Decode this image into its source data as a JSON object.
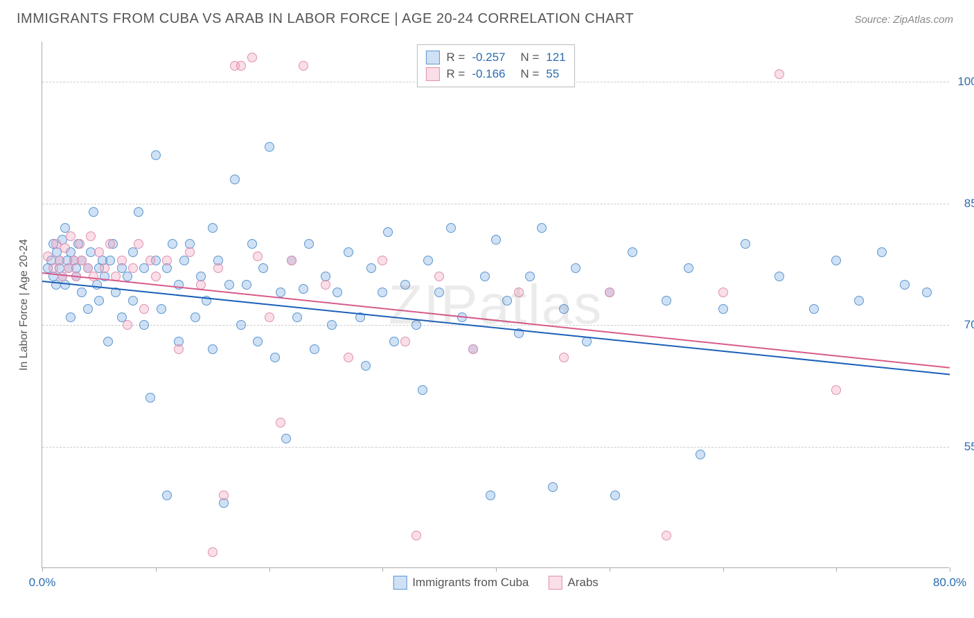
{
  "title": "IMMIGRANTS FROM CUBA VS ARAB IN LABOR FORCE | AGE 20-24 CORRELATION CHART",
  "source": "Source: ZipAtlas.com",
  "watermark": "ZIPatlas",
  "ylabel": "In Labor Force | Age 20-24",
  "chart": {
    "type": "scatter",
    "xlim": [
      0,
      80
    ],
    "ylim": [
      40,
      105
    ],
    "xticks": [
      0,
      10,
      20,
      30,
      40,
      50,
      60,
      70,
      80
    ],
    "xtick_labels_shown": {
      "0": "0.0%",
      "80": "80.0%"
    },
    "yticks": [
      55,
      70,
      85,
      100
    ],
    "ytick_labels": [
      "55.0%",
      "70.0%",
      "85.0%",
      "100.0%"
    ],
    "grid_color": "#cccccc",
    "background_color": "#ffffff",
    "point_radius": 7,
    "point_stroke_width": 1.5,
    "series": [
      {
        "name": "Immigrants from Cuba",
        "fill": "rgba(120,170,225,0.35)",
        "stroke": "#5a96d0",
        "R": "-0.257",
        "N": "121",
        "trend": {
          "x1": 0,
          "y1": 75.5,
          "x2": 80,
          "y2": 64.0,
          "color": "#1b5fb8"
        },
        "points": [
          [
            0.5,
            77
          ],
          [
            0.8,
            78
          ],
          [
            1.0,
            76
          ],
          [
            1.0,
            80
          ],
          [
            1.2,
            75
          ],
          [
            1.3,
            79
          ],
          [
            1.5,
            77
          ],
          [
            1.5,
            78
          ],
          [
            1.8,
            76
          ],
          [
            1.8,
            80.5
          ],
          [
            2.0,
            75
          ],
          [
            2.0,
            82
          ],
          [
            2.2,
            78
          ],
          [
            2.3,
            77
          ],
          [
            2.5,
            71
          ],
          [
            2.5,
            79
          ],
          [
            2.8,
            78
          ],
          [
            3.0,
            77
          ],
          [
            3.0,
            76
          ],
          [
            3.2,
            80
          ],
          [
            3.5,
            74
          ],
          [
            3.5,
            78
          ],
          [
            4.0,
            77
          ],
          [
            4.0,
            72
          ],
          [
            4.3,
            79
          ],
          [
            4.5,
            84
          ],
          [
            4.8,
            75
          ],
          [
            5.0,
            77
          ],
          [
            5.0,
            73
          ],
          [
            5.3,
            78
          ],
          [
            5.5,
            76
          ],
          [
            5.8,
            68
          ],
          [
            6.0,
            78
          ],
          [
            6.2,
            80
          ],
          [
            6.5,
            74
          ],
          [
            7.0,
            77
          ],
          [
            7.0,
            71
          ],
          [
            7.5,
            76
          ],
          [
            8.0,
            79
          ],
          [
            8.0,
            73
          ],
          [
            8.5,
            84
          ],
          [
            9.0,
            77
          ],
          [
            9.0,
            70
          ],
          [
            9.5,
            61
          ],
          [
            10.0,
            78
          ],
          [
            10.0,
            91
          ],
          [
            10.5,
            72
          ],
          [
            11.0,
            77
          ],
          [
            11.0,
            49
          ],
          [
            11.5,
            80
          ],
          [
            12.0,
            75
          ],
          [
            12.0,
            68
          ],
          [
            12.5,
            78
          ],
          [
            13.0,
            80
          ],
          [
            13.5,
            71
          ],
          [
            14.0,
            76
          ],
          [
            14.5,
            73
          ],
          [
            15.0,
            82
          ],
          [
            15.0,
            67
          ],
          [
            15.5,
            78
          ],
          [
            16.0,
            48
          ],
          [
            16.5,
            75
          ],
          [
            17.0,
            88
          ],
          [
            17.5,
            70
          ],
          [
            18.0,
            75
          ],
          [
            18.5,
            80
          ],
          [
            19.0,
            68
          ],
          [
            19.5,
            77
          ],
          [
            20.0,
            92
          ],
          [
            20.5,
            66
          ],
          [
            21.0,
            74
          ],
          [
            21.5,
            56
          ],
          [
            22.0,
            78
          ],
          [
            22.5,
            71
          ],
          [
            23.0,
            74.5
          ],
          [
            23.5,
            80
          ],
          [
            24.0,
            67
          ],
          [
            25.0,
            76
          ],
          [
            25.5,
            70
          ],
          [
            26.0,
            74
          ],
          [
            27.0,
            79
          ],
          [
            28.0,
            71
          ],
          [
            28.5,
            65
          ],
          [
            29.0,
            77
          ],
          [
            30.0,
            74
          ],
          [
            30.5,
            81.5
          ],
          [
            31.0,
            68
          ],
          [
            32.0,
            75
          ],
          [
            33.0,
            70
          ],
          [
            33.5,
            62
          ],
          [
            34.0,
            78
          ],
          [
            35.0,
            74
          ],
          [
            36.0,
            82
          ],
          [
            37.0,
            71
          ],
          [
            38.0,
            67
          ],
          [
            39.0,
            76
          ],
          [
            39.5,
            49
          ],
          [
            40.0,
            80.5
          ],
          [
            41.0,
            73
          ],
          [
            42.0,
            69
          ],
          [
            43.0,
            76
          ],
          [
            44.0,
            82
          ],
          [
            45.0,
            50
          ],
          [
            46.0,
            72
          ],
          [
            47.0,
            77
          ],
          [
            48.0,
            68
          ],
          [
            50.0,
            74
          ],
          [
            50.5,
            49
          ],
          [
            52.0,
            79
          ],
          [
            55.0,
            73
          ],
          [
            57.0,
            77
          ],
          [
            58.0,
            54
          ],
          [
            60.0,
            72
          ],
          [
            62.0,
            80
          ],
          [
            65.0,
            76
          ],
          [
            68.0,
            72
          ],
          [
            70.0,
            78
          ],
          [
            72.0,
            73
          ],
          [
            74.0,
            79
          ],
          [
            76.0,
            75
          ],
          [
            78.0,
            74
          ]
        ]
      },
      {
        "name": "Arabs",
        "fill": "rgba(240,160,190,0.35)",
        "stroke": "#e090b0",
        "R": "-0.166",
        "N": "55",
        "trend": {
          "x1": 0,
          "y1": 76.5,
          "x2": 80,
          "y2": 64.8,
          "color": "#d85a8a"
        },
        "points": [
          [
            0.5,
            78.5
          ],
          [
            1.0,
            77
          ],
          [
            1.2,
            80
          ],
          [
            1.5,
            78
          ],
          [
            1.8,
            76
          ],
          [
            2.0,
            79.5
          ],
          [
            2.3,
            77
          ],
          [
            2.5,
            81
          ],
          [
            2.8,
            78
          ],
          [
            3.0,
            76
          ],
          [
            3.3,
            80
          ],
          [
            3.5,
            78
          ],
          [
            4.0,
            77
          ],
          [
            4.3,
            81
          ],
          [
            4.5,
            76
          ],
          [
            5.0,
            79
          ],
          [
            5.5,
            77
          ],
          [
            6.0,
            80
          ],
          [
            6.5,
            76
          ],
          [
            7.0,
            78
          ],
          [
            7.5,
            70
          ],
          [
            8.0,
            77
          ],
          [
            8.5,
            80
          ],
          [
            9.0,
            72
          ],
          [
            9.5,
            78
          ],
          [
            10.0,
            76
          ],
          [
            11.0,
            78
          ],
          [
            12.0,
            67
          ],
          [
            13.0,
            79
          ],
          [
            14.0,
            75
          ],
          [
            15.0,
            42
          ],
          [
            15.5,
            77
          ],
          [
            16.0,
            49
          ],
          [
            17.0,
            102
          ],
          [
            17.5,
            102
          ],
          [
            18.5,
            103
          ],
          [
            19.0,
            78.5
          ],
          [
            20.0,
            71
          ],
          [
            21.0,
            58
          ],
          [
            22.0,
            78
          ],
          [
            23.0,
            102
          ],
          [
            25.0,
            75
          ],
          [
            27.0,
            66
          ],
          [
            30.0,
            78
          ],
          [
            32.0,
            68
          ],
          [
            33.0,
            44
          ],
          [
            35.0,
            76
          ],
          [
            38.0,
            67
          ],
          [
            42.0,
            74
          ],
          [
            46.0,
            66
          ],
          [
            50.0,
            74
          ],
          [
            55.0,
            44
          ],
          [
            60.0,
            74
          ],
          [
            65.0,
            101
          ],
          [
            70.0,
            62
          ]
        ]
      }
    ]
  },
  "legend_bottom": [
    {
      "label": "Immigrants from Cuba",
      "fill": "rgba(120,170,225,0.35)",
      "stroke": "#5a96d0"
    },
    {
      "label": "Arabs",
      "fill": "rgba(240,160,190,0.35)",
      "stroke": "#e090b0"
    }
  ],
  "legend_top_labels": {
    "R": "R =",
    "N": "N ="
  },
  "tick_label_color": "#2b6cb0",
  "stat_value_color": "#2b6cb0"
}
